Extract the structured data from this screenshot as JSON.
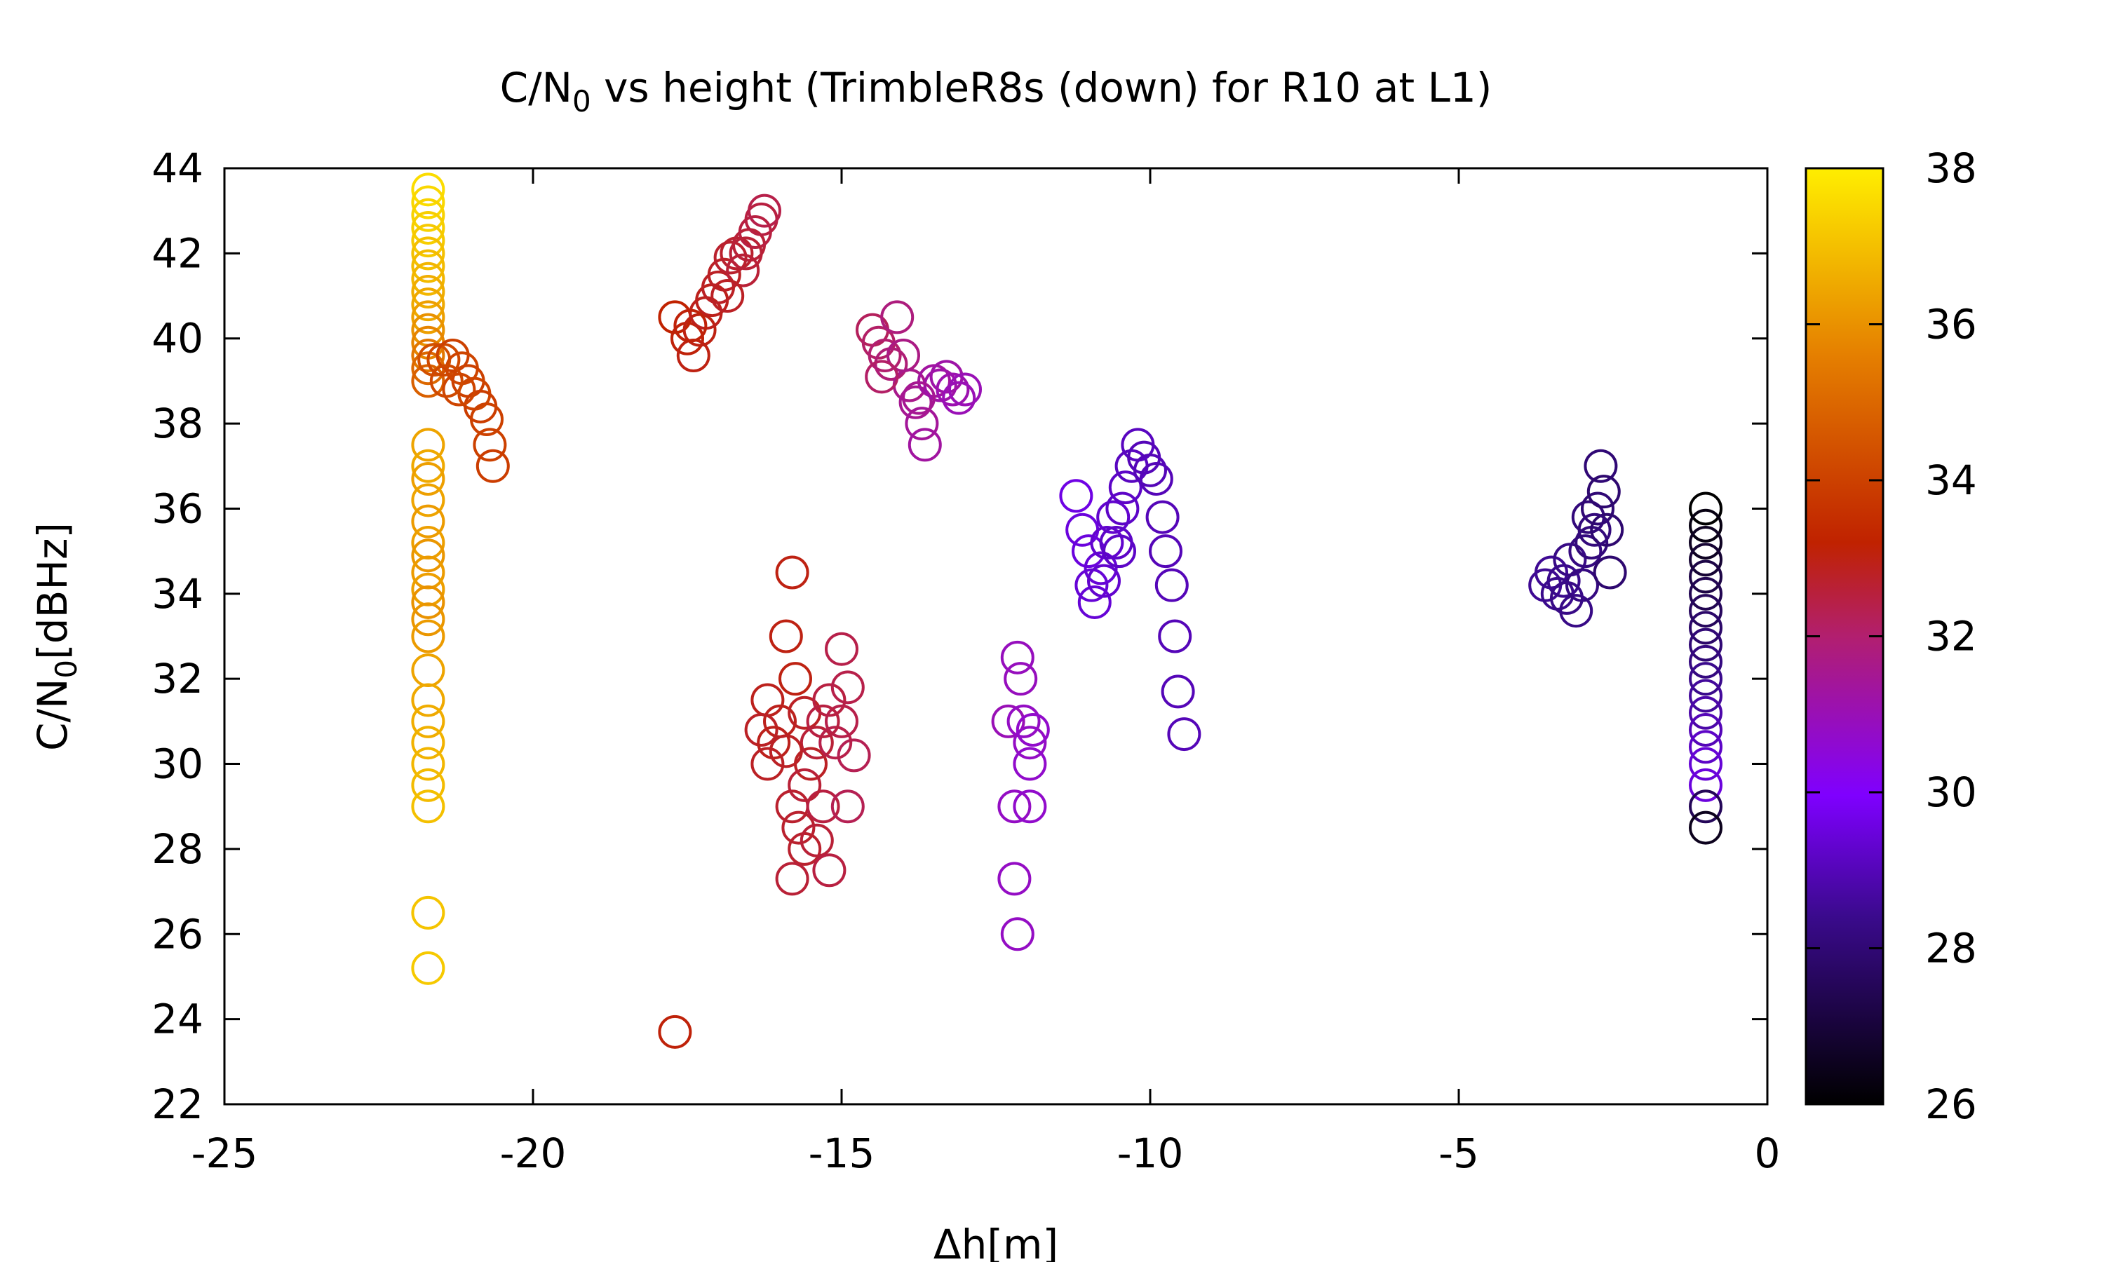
{
  "chart_data": {
    "type": "scatter",
    "title": {
      "prefix": "C/N",
      "subscript": "0",
      "suffix": " vs height (TrimbleR8s (down) for R10 at L1)"
    },
    "xlabel": "Δh[m]",
    "ylabel": {
      "prefix": "C/N",
      "subscript": "0",
      "suffix": "[dBHz]"
    },
    "xlim": [
      -25,
      0
    ],
    "ylim": [
      22,
      44
    ],
    "xticks": [
      "-25",
      "-20",
      "-15",
      "-10",
      "-5",
      "0"
    ],
    "yticks": [
      "22",
      "24",
      "26",
      "28",
      "30",
      "32",
      "34",
      "36",
      "38",
      "40",
      "42",
      "44"
    ],
    "colorbar": {
      "range": [
        26,
        38
      ],
      "ticks": [
        "26",
        "28",
        "30",
        "32",
        "34",
        "36",
        "38"
      ],
      "palette": "black-purple-red-orange-yellow"
    },
    "marker": "open-circle",
    "grid": false,
    "points": [
      [
        -21.7,
        43.5,
        37.6
      ],
      [
        -21.7,
        43.2,
        37.5
      ],
      [
        -21.7,
        42.9,
        37.4
      ],
      [
        -21.7,
        42.6,
        37.3
      ],
      [
        -21.7,
        42.3,
        37.2
      ],
      [
        -21.7,
        42.0,
        37.0
      ],
      [
        -21.7,
        41.7,
        36.9
      ],
      [
        -21.7,
        41.4,
        36.8
      ],
      [
        -21.7,
        41.1,
        36.6
      ],
      [
        -21.7,
        40.8,
        36.5
      ],
      [
        -21.7,
        40.5,
        36.3
      ],
      [
        -21.7,
        40.2,
        36.0
      ],
      [
        -21.7,
        39.9,
        35.7
      ],
      [
        -21.7,
        39.6,
        35.4
      ],
      [
        -21.7,
        39.3,
        35.0
      ],
      [
        -21.7,
        39.0,
        34.8
      ],
      [
        -21.6,
        39.5,
        34.4
      ],
      [
        -21.45,
        39.5,
        34.2
      ],
      [
        -21.3,
        39.6,
        34.0
      ],
      [
        -21.15,
        39.3,
        34.1
      ],
      [
        -21.05,
        39.0,
        34.0
      ],
      [
        -20.95,
        38.7,
        34.1
      ],
      [
        -20.85,
        38.4,
        33.9
      ],
      [
        -20.75,
        38.1,
        34.0
      ],
      [
        -20.7,
        37.5,
        34.0
      ],
      [
        -20.65,
        37.0,
        33.9
      ],
      [
        -21.4,
        39.0,
        34.2
      ],
      [
        -21.2,
        38.8,
        34.1
      ],
      [
        -21.7,
        37.5,
        36.4
      ],
      [
        -21.7,
        37.0,
        36.5
      ],
      [
        -21.7,
        36.7,
        36.3
      ],
      [
        -21.7,
        36.2,
        36.4
      ],
      [
        -21.7,
        35.7,
        36.2
      ],
      [
        -21.7,
        35.2,
        36.3
      ],
      [
        -21.7,
        34.9,
        36.1
      ],
      [
        -21.7,
        34.5,
        36.2
      ],
      [
        -21.7,
        34.1,
        36.3
      ],
      [
        -21.7,
        33.8,
        36.0
      ],
      [
        -21.7,
        33.4,
        36.1
      ],
      [
        -21.7,
        33.0,
        36.2
      ],
      [
        -21.7,
        32.2,
        36.4
      ],
      [
        -21.7,
        31.5,
        36.5
      ],
      [
        -21.7,
        31.0,
        36.6
      ],
      [
        -21.7,
        30.5,
        36.7
      ],
      [
        -21.7,
        30.0,
        36.8
      ],
      [
        -21.7,
        29.5,
        36.9
      ],
      [
        -21.7,
        29.0,
        37.0
      ],
      [
        -21.7,
        26.5,
        37.1
      ],
      [
        -21.7,
        25.2,
        37.2
      ],
      [
        -17.7,
        40.5,
        33.2
      ],
      [
        -17.5,
        40.0,
        33.1
      ],
      [
        -17.4,
        39.6,
        33.0
      ],
      [
        -17.3,
        40.2,
        33.0
      ],
      [
        -17.2,
        40.6,
        32.9
      ],
      [
        -17.1,
        40.9,
        32.9
      ],
      [
        -17.0,
        41.2,
        32.8
      ],
      [
        -16.9,
        41.5,
        32.8
      ],
      [
        -16.8,
        41.9,
        32.7
      ],
      [
        -16.7,
        42.0,
        32.7
      ],
      [
        -16.6,
        41.6,
        32.6
      ],
      [
        -16.5,
        42.2,
        32.6
      ],
      [
        -16.4,
        42.5,
        32.5
      ],
      [
        -16.3,
        42.8,
        32.5
      ],
      [
        -16.25,
        43.0,
        32.4
      ],
      [
        -17.45,
        40.3,
        33.1
      ],
      [
        -16.85,
        41.0,
        32.8
      ],
      [
        -16.55,
        42.0,
        32.6
      ],
      [
        -17.7,
        23.7,
        33.1
      ],
      [
        -15.8,
        34.5,
        33.0
      ],
      [
        -15.9,
        33.0,
        33.0
      ],
      [
        -15.75,
        32.0,
        33.0
      ],
      [
        -16.2,
        31.5,
        32.9
      ],
      [
        -16.0,
        31.0,
        32.9
      ],
      [
        -16.3,
        30.8,
        32.8
      ],
      [
        -16.1,
        30.5,
        32.9
      ],
      [
        -15.6,
        31.2,
        32.8
      ],
      [
        -16.2,
        30.0,
        32.8
      ],
      [
        -15.5,
        30.0,
        32.8
      ],
      [
        -15.8,
        29.0,
        32.7
      ],
      [
        -15.7,
        28.5,
        32.7
      ],
      [
        -15.6,
        28.0,
        32.7
      ],
      [
        -15.8,
        27.3,
        32.6
      ],
      [
        -15.4,
        28.2,
        32.6
      ],
      [
        -15.2,
        27.5,
        32.5
      ],
      [
        -15.3,
        29.0,
        32.5
      ],
      [
        -15.4,
        30.5,
        32.6
      ],
      [
        -15.2,
        31.5,
        32.5
      ],
      [
        -15.0,
        32.7,
        32.4
      ],
      [
        -14.9,
        31.8,
        32.4
      ],
      [
        -15.0,
        31.0,
        32.4
      ],
      [
        -14.8,
        30.2,
        32.3
      ],
      [
        -15.1,
        30.5,
        32.4
      ],
      [
        -14.9,
        29.0,
        32.3
      ],
      [
        -15.6,
        29.5,
        32.6
      ],
      [
        -15.9,
        30.3,
        32.8
      ],
      [
        -15.3,
        31.0,
        32.5
      ],
      [
        -14.5,
        40.2,
        32.2
      ],
      [
        -14.4,
        39.9,
        32.1
      ],
      [
        -14.3,
        39.6,
        32.0
      ],
      [
        -14.2,
        39.4,
        31.9
      ],
      [
        -14.1,
        40.5,
        31.8
      ],
      [
        -14.0,
        39.6,
        31.7
      ],
      [
        -13.9,
        38.9,
        31.6
      ],
      [
        -13.8,
        38.5,
        31.5
      ],
      [
        -13.7,
        38.0,
        31.4
      ],
      [
        -13.65,
        37.5,
        31.3
      ],
      [
        -13.5,
        39.0,
        31.3
      ],
      [
        -13.4,
        38.9,
        31.2
      ],
      [
        -13.3,
        39.1,
        31.2
      ],
      [
        -13.2,
        38.8,
        31.1
      ],
      [
        -13.1,
        38.6,
        31.0
      ],
      [
        -13.0,
        38.8,
        31.0
      ],
      [
        -14.35,
        39.1,
        32.1
      ],
      [
        -13.75,
        38.6,
        31.5
      ],
      [
        -12.3,
        31.0,
        31.0
      ],
      [
        -12.15,
        32.5,
        30.9
      ],
      [
        -12.1,
        32.0,
        30.9
      ],
      [
        -12.05,
        31.0,
        30.8
      ],
      [
        -11.95,
        30.5,
        30.8
      ],
      [
        -11.9,
        30.8,
        30.7
      ],
      [
        -11.95,
        30.0,
        30.7
      ],
      [
        -12.2,
        29.0,
        30.8
      ],
      [
        -11.95,
        29.0,
        30.7
      ],
      [
        -12.2,
        27.3,
        30.8
      ],
      [
        -12.15,
        26.0,
        30.8
      ],
      [
        -11.2,
        36.3,
        29.6
      ],
      [
        -11.1,
        35.5,
        29.5
      ],
      [
        -11.0,
        35.0,
        29.5
      ],
      [
        -10.95,
        34.2,
        29.4
      ],
      [
        -10.9,
        33.8,
        29.4
      ],
      [
        -10.8,
        34.6,
        29.4
      ],
      [
        -10.7,
        35.2,
        29.3
      ],
      [
        -10.6,
        35.8,
        29.3
      ],
      [
        -10.5,
        35.0,
        29.2
      ],
      [
        -10.45,
        36.0,
        29.2
      ],
      [
        -10.4,
        36.5,
        29.2
      ],
      [
        -10.3,
        37.0,
        29.1
      ],
      [
        -10.2,
        37.5,
        29.1
      ],
      [
        -10.1,
        37.2,
        29.0
      ],
      [
        -10.0,
        36.9,
        29.0
      ],
      [
        -9.9,
        36.7,
        29.0
      ],
      [
        -9.8,
        35.8,
        29.0
      ],
      [
        -9.75,
        35.0,
        29.0
      ],
      [
        -9.65,
        34.2,
        29.0
      ],
      [
        -9.6,
        33.0,
        29.0
      ],
      [
        -9.55,
        31.7,
        29.0
      ],
      [
        -9.45,
        30.7,
        29.0
      ],
      [
        -10.75,
        34.3,
        29.3
      ],
      [
        -10.55,
        35.2,
        29.2
      ],
      [
        -3.6,
        34.2,
        28.5
      ],
      [
        -3.5,
        34.5,
        28.5
      ],
      [
        -3.4,
        34.0,
        28.4
      ],
      [
        -3.3,
        34.3,
        28.4
      ],
      [
        -3.2,
        34.8,
        28.3
      ],
      [
        -3.1,
        33.6,
        28.3
      ],
      [
        -3.0,
        34.2,
        28.2
      ],
      [
        -2.95,
        35.0,
        28.2
      ],
      [
        -2.9,
        35.8,
        28.1
      ],
      [
        -2.85,
        35.2,
        28.1
      ],
      [
        -2.75,
        36.0,
        28.0
      ],
      [
        -2.7,
        37.0,
        28.0
      ],
      [
        -2.65,
        36.4,
        27.9
      ],
      [
        -2.6,
        35.5,
        27.9
      ],
      [
        -2.55,
        34.5,
        27.9
      ],
      [
        -3.25,
        33.9,
        28.3
      ],
      [
        -2.8,
        35.5,
        28.1
      ],
      [
        -1.0,
        36.0,
        26.0
      ],
      [
        -1.0,
        35.6,
        26.3
      ],
      [
        -1.0,
        35.2,
        26.6
      ],
      [
        -1.0,
        34.8,
        26.9
      ],
      [
        -1.0,
        34.4,
        27.2
      ],
      [
        -1.0,
        34.0,
        27.4
      ],
      [
        -1.0,
        33.6,
        27.6
      ],
      [
        -1.0,
        33.2,
        27.8
      ],
      [
        -1.0,
        32.8,
        28.0
      ],
      [
        -1.0,
        32.4,
        28.2
      ],
      [
        -1.0,
        32.0,
        28.4
      ],
      [
        -1.0,
        31.6,
        28.6
      ],
      [
        -1.0,
        31.2,
        28.8
      ],
      [
        -1.0,
        30.8,
        29.0
      ],
      [
        -1.0,
        30.4,
        29.2
      ],
      [
        -1.0,
        30.0,
        29.4
      ],
      [
        -1.0,
        29.5,
        29.5
      ],
      [
        -1.0,
        29.0,
        27.5
      ],
      [
        -1.0,
        28.5,
        26.5
      ]
    ]
  }
}
